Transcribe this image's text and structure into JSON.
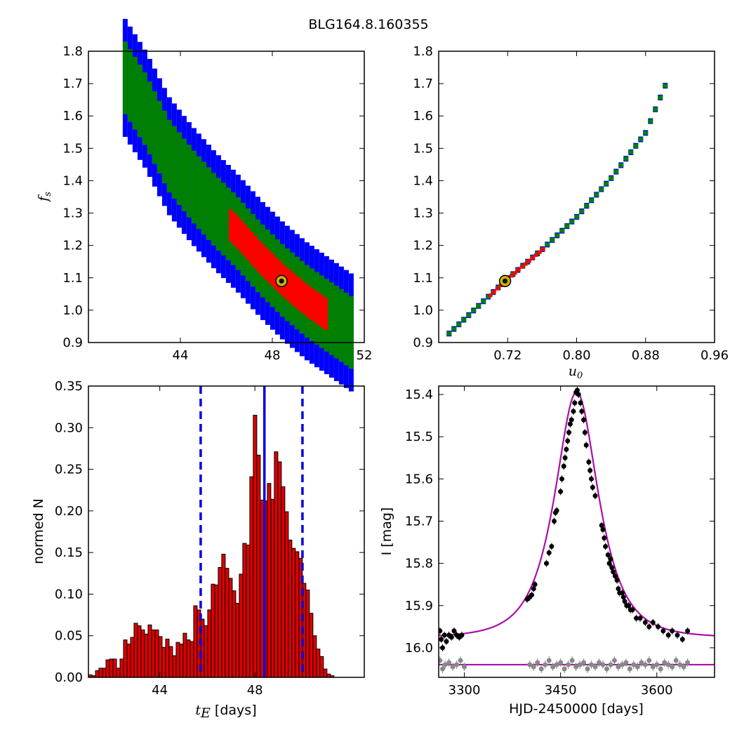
{
  "figure_title": "BLG164.8.160355",
  "colors": {
    "sigma3": "#0000ff",
    "sigma2": "#008000",
    "sigma1": "#ff0000",
    "best_fit_marker": "#c8b400",
    "hist_bar": "#dd0000",
    "vline": "#0000dd",
    "model": "#aa10aa",
    "data_points": "#000000",
    "residuals": "#888888"
  },
  "chart_data": [
    {
      "panel": "top-left",
      "type": "scatter",
      "description_kind": "chi2 contour grid",
      "xlabel": "",
      "ylabel": "f_s",
      "xlim": [
        40,
        52
      ],
      "ylim": [
        0.9,
        1.8
      ],
      "xticks": [
        "44",
        "48",
        "52"
      ],
      "yticks": [
        "0.9",
        "1.0",
        "1.1",
        "1.2",
        "1.3",
        "1.4",
        "1.5",
        "1.6",
        "1.7",
        "1.8"
      ],
      "ridge": [
        [
          41.6,
          1.72
        ],
        [
          42.5,
          1.62
        ],
        [
          43.5,
          1.48
        ],
        [
          44.5,
          1.39
        ],
        [
          45.5,
          1.31
        ],
        [
          46.5,
          1.24
        ],
        [
          47.5,
          1.16
        ],
        [
          48.5,
          1.09
        ],
        [
          49.5,
          1.03
        ],
        [
          50.5,
          0.98
        ],
        [
          51.5,
          0.93
        ]
      ],
      "sigma3_width": 0.36,
      "sigma2_width": 0.22,
      "sigma1_xrange": [
        46.2,
        50.4
      ],
      "sigma1_width": 0.1,
      "best_fit": {
        "x": 48.4,
        "y": 1.09
      }
    },
    {
      "panel": "top-right",
      "type": "scatter",
      "description_kind": "chi2 contour grid",
      "xlabel": "u_0",
      "ylabel": "",
      "xlim": [
        0.64,
        0.96
      ],
      "ylim": [
        0.9,
        1.8
      ],
      "xticks": [
        "0.72",
        "0.80",
        "0.88",
        "0.96"
      ],
      "yticks": [
        "0.9",
        "1.0",
        "1.1",
        "1.2",
        "1.3",
        "1.4",
        "1.5",
        "1.6",
        "1.7",
        "1.8"
      ],
      "ridge": [
        [
          0.652,
          0.93
        ],
        [
          0.68,
          1.0
        ],
        [
          0.72,
          1.1
        ],
        [
          0.76,
          1.19
        ],
        [
          0.8,
          1.29
        ],
        [
          0.84,
          1.41
        ],
        [
          0.88,
          1.55
        ],
        [
          0.905,
          1.71
        ]
      ],
      "sigma3_width": 0.013,
      "sigma2_width": 0.008,
      "sigma1_xrange": [
        0.7,
        0.765
      ],
      "sigma1_width": 0.003,
      "best_fit": {
        "x": 0.717,
        "y": 1.09
      }
    },
    {
      "panel": "bottom-left",
      "type": "bar",
      "xlabel": "t_E [days]",
      "ylabel": "normed N",
      "xlim": [
        41.0,
        52.6
      ],
      "ylim": [
        0,
        0.35
      ],
      "xticks": [
        "44",
        "48"
      ],
      "yticks": [
        "0.00",
        "0.05",
        "0.10",
        "0.15",
        "0.20",
        "0.25",
        "0.30",
        "0.35"
      ],
      "bin_start": 41.0,
      "bin_width": 0.1475,
      "values": [
        0.003,
        0.002,
        0.008,
        0.011,
        0.011,
        0.021,
        0.022,
        0.022,
        0.011,
        0.022,
        0.045,
        0.04,
        0.048,
        0.065,
        0.062,
        0.057,
        0.052,
        0.063,
        0.057,
        0.057,
        0.049,
        0.036,
        0.046,
        0.037,
        0.026,
        0.042,
        0.04,
        0.053,
        0.045,
        0.043,
        0.086,
        0.081,
        0.07,
        0.062,
        0.081,
        0.112,
        0.111,
        0.132,
        0.148,
        0.131,
        0.119,
        0.104,
        0.089,
        0.124,
        0.161,
        0.159,
        0.241,
        0.315,
        0.267,
        0.213,
        0.212,
        0.233,
        0.214,
        0.271,
        0.259,
        0.229,
        0.199,
        0.165,
        0.155,
        0.151,
        0.143,
        0.113,
        0.105,
        0.077,
        0.05,
        0.034,
        0.025,
        0.01,
        0.004,
        0.002
      ],
      "vlines": [
        {
          "x": 45.72,
          "style": "dashed"
        },
        {
          "x": 48.4,
          "style": "solid"
        },
        {
          "x": 50.0,
          "style": "dashed"
        }
      ]
    },
    {
      "panel": "bottom-right",
      "type": "line",
      "xlabel": "HJD-2450000 [days]",
      "ylabel": "I [mag]",
      "xlim": [
        3260,
        3690
      ],
      "ylim": [
        16.07,
        15.38
      ],
      "y_inverted": true,
      "xticks": [
        "3300",
        "3450",
        "3600"
      ],
      "yticks": [
        "15.4",
        "15.5",
        "15.6",
        "15.7",
        "15.8",
        "15.9",
        "16.0"
      ],
      "model": {
        "t0": 3475,
        "tE": 48.4,
        "u0": 0.717,
        "fs": 1.09,
        "baseline_mag": 15.976
      },
      "residual_line_mag": 16.04,
      "data_points": [
        [
          3262,
          15.96
        ],
        [
          3264,
          15.98
        ],
        [
          3266,
          16.0
        ],
        [
          3269,
          15.97
        ],
        [
          3272,
          15.985
        ],
        [
          3276,
          15.97
        ],
        [
          3280,
          15.975
        ],
        [
          3284,
          15.96
        ],
        [
          3288,
          15.97
        ],
        [
          3292,
          15.975
        ],
        [
          3296,
          15.97
        ],
        [
          3398,
          15.885
        ],
        [
          3402,
          15.88
        ],
        [
          3405,
          15.875
        ],
        [
          3408,
          15.86
        ],
        [
          3410,
          15.85
        ],
        [
          3428,
          15.8
        ],
        [
          3432,
          15.775
        ],
        [
          3436,
          15.76
        ],
        [
          3440,
          15.7
        ],
        [
          3442,
          15.68
        ],
        [
          3444,
          15.675
        ],
        [
          3450,
          15.63
        ],
        [
          3452,
          15.6
        ],
        [
          3455,
          15.57
        ],
        [
          3457,
          15.55
        ],
        [
          3459,
          15.53
        ],
        [
          3461,
          15.51
        ],
        [
          3463,
          15.49
        ],
        [
          3465,
          15.47
        ],
        [
          3467,
          15.46
        ],
        [
          3470,
          15.44
        ],
        [
          3472,
          15.42
        ],
        [
          3474,
          15.395
        ],
        [
          3476,
          15.39
        ],
        [
          3478,
          15.4
        ],
        [
          3481,
          15.42
        ],
        [
          3483,
          15.44
        ],
        [
          3486,
          15.46
        ],
        [
          3488,
          15.49
        ],
        [
          3490,
          15.52
        ],
        [
          3494,
          15.56
        ],
        [
          3496,
          15.58
        ],
        [
          3498,
          15.6
        ],
        [
          3500,
          15.62
        ],
        [
          3504,
          15.64
        ],
        [
          3514,
          15.71
        ],
        [
          3516,
          15.72
        ],
        [
          3518,
          15.74
        ],
        [
          3520,
          15.76
        ],
        [
          3524,
          15.78
        ],
        [
          3526,
          15.8
        ],
        [
          3528,
          15.79
        ],
        [
          3530,
          15.81
        ],
        [
          3532,
          15.82
        ],
        [
          3535,
          15.83
        ],
        [
          3538,
          15.84
        ],
        [
          3540,
          15.86
        ],
        [
          3542,
          15.87
        ],
        [
          3546,
          15.87
        ],
        [
          3548,
          15.88
        ],
        [
          3550,
          15.89
        ],
        [
          3553,
          15.9
        ],
        [
          3556,
          15.9
        ],
        [
          3559,
          15.91
        ],
        [
          3562,
          15.91
        ],
        [
          3568,
          15.93
        ],
        [
          3574,
          15.93
        ],
        [
          3582,
          15.94
        ],
        [
          3588,
          15.95
        ],
        [
          3594,
          15.94
        ],
        [
          3602,
          15.95
        ],
        [
          3610,
          15.96
        ],
        [
          3618,
          15.97
        ],
        [
          3624,
          15.96
        ],
        [
          3632,
          15.97
        ],
        [
          3640,
          15.98
        ],
        [
          3648,
          15.96
        ]
      ],
      "residual_points": [
        [
          3262,
          16.03
        ],
        [
          3266,
          16.05
        ],
        [
          3270,
          16.04
        ],
        [
          3276,
          16.035
        ],
        [
          3282,
          16.045
        ],
        [
          3288,
          16.04
        ],
        [
          3294,
          16.03
        ],
        [
          3300,
          16.045
        ],
        [
          3402,
          16.04
        ],
        [
          3408,
          16.045
        ],
        [
          3414,
          16.035
        ],
        [
          3420,
          16.05
        ],
        [
          3426,
          16.04
        ],
        [
          3432,
          16.03
        ],
        [
          3438,
          16.045
        ],
        [
          3444,
          16.04
        ],
        [
          3450,
          16.035
        ],
        [
          3456,
          16.05
        ],
        [
          3462,
          16.04
        ],
        [
          3468,
          16.03
        ],
        [
          3474,
          16.045
        ],
        [
          3480,
          16.04
        ],
        [
          3486,
          16.035
        ],
        [
          3492,
          16.05
        ],
        [
          3498,
          16.04
        ],
        [
          3504,
          16.045
        ],
        [
          3510,
          16.035
        ],
        [
          3516,
          16.04
        ],
        [
          3522,
          16.05
        ],
        [
          3528,
          16.04
        ],
        [
          3534,
          16.03
        ],
        [
          3540,
          16.045
        ],
        [
          3546,
          16.04
        ],
        [
          3552,
          16.035
        ],
        [
          3558,
          16.05
        ],
        [
          3564,
          16.04
        ],
        [
          3570,
          16.045
        ],
        [
          3576,
          16.035
        ],
        [
          3582,
          16.04
        ],
        [
          3588,
          16.03
        ],
        [
          3594,
          16.045
        ],
        [
          3600,
          16.04
        ],
        [
          3606,
          16.05
        ],
        [
          3612,
          16.035
        ],
        [
          3618,
          16.04
        ],
        [
          3624,
          16.045
        ],
        [
          3630,
          16.03
        ],
        [
          3636,
          16.04
        ],
        [
          3642,
          16.045
        ],
        [
          3648,
          16.035
        ]
      ]
    }
  ]
}
